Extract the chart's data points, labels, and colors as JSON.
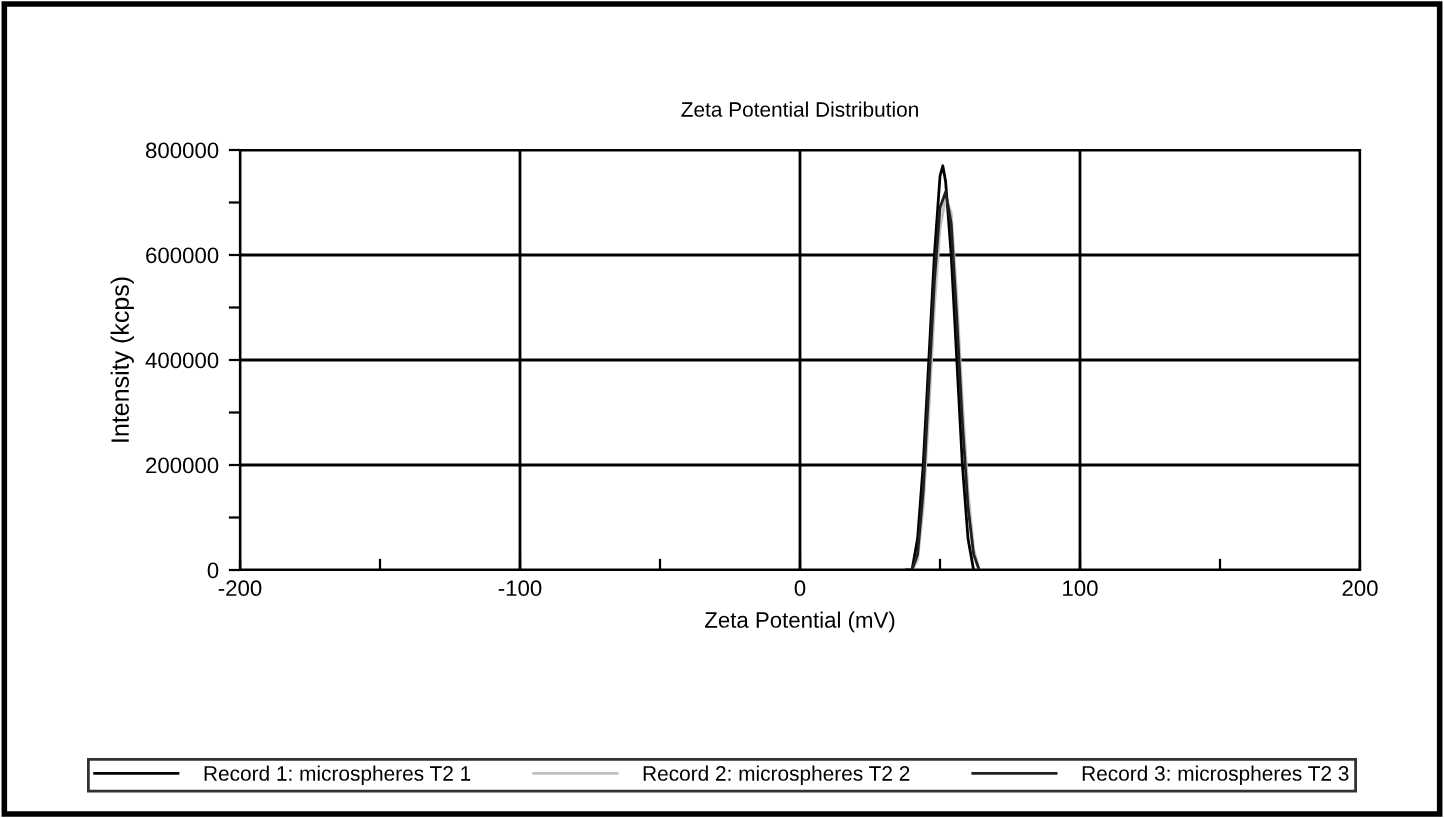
{
  "chart_data": {
    "type": "line",
    "title": "Zeta Potential Distribution",
    "xlabel": "Zeta Potential (mV)",
    "ylabel": "Intensity (kcps)",
    "xlim": [
      -200,
      200
    ],
    "xticks": [
      -200,
      {
        "value": -150,
        "label": null
      },
      -100,
      {
        "value": -50,
        "label": null
      },
      0,
      {
        "value": 50,
        "label": null
      },
      100,
      {
        "value": 150,
        "label": null
      },
      200
    ],
    "ylim": [
      0,
      800000
    ],
    "yticks": [
      0,
      {
        "value": 100000,
        "label": null
      },
      200000,
      {
        "value": 300000,
        "label": null
      },
      400000,
      {
        "value": 500000,
        "label": null
      },
      600000,
      {
        "value": 700000,
        "label": null
      },
      800000
    ],
    "grid": true,
    "legend": "bottom",
    "line_style": "solid",
    "series": [
      {
        "name": "Record 1: microspheres T2 1",
        "color": "#000000",
        "x": [
          38,
          40,
          42,
          44,
          46,
          48,
          50,
          51,
          52,
          54,
          56,
          58,
          60,
          62
        ],
        "values": [
          0,
          0,
          60000,
          200000,
          400000,
          600000,
          750000,
          770000,
          740000,
          600000,
          400000,
          200000,
          60000,
          0
        ]
      },
      {
        "name": "Record 2: microspheres T2 2",
        "color": "#c0c0c0",
        "x": [
          40,
          42,
          44,
          46,
          48,
          50,
          52,
          54,
          56,
          58,
          60,
          62,
          64
        ],
        "values": [
          0,
          20000,
          120000,
          300000,
          500000,
          650000,
          710000,
          680000,
          520000,
          320000,
          150000,
          40000,
          0
        ]
      },
      {
        "name": "Record 3: microspheres T2 3",
        "color": "#202020",
        "x": [
          40,
          42,
          44,
          46,
          48,
          50,
          52,
          54,
          56,
          58,
          60,
          62,
          64
        ],
        "values": [
          0,
          30000,
          150000,
          350000,
          550000,
          690000,
          720000,
          660000,
          480000,
          280000,
          120000,
          30000,
          0
        ]
      }
    ]
  }
}
